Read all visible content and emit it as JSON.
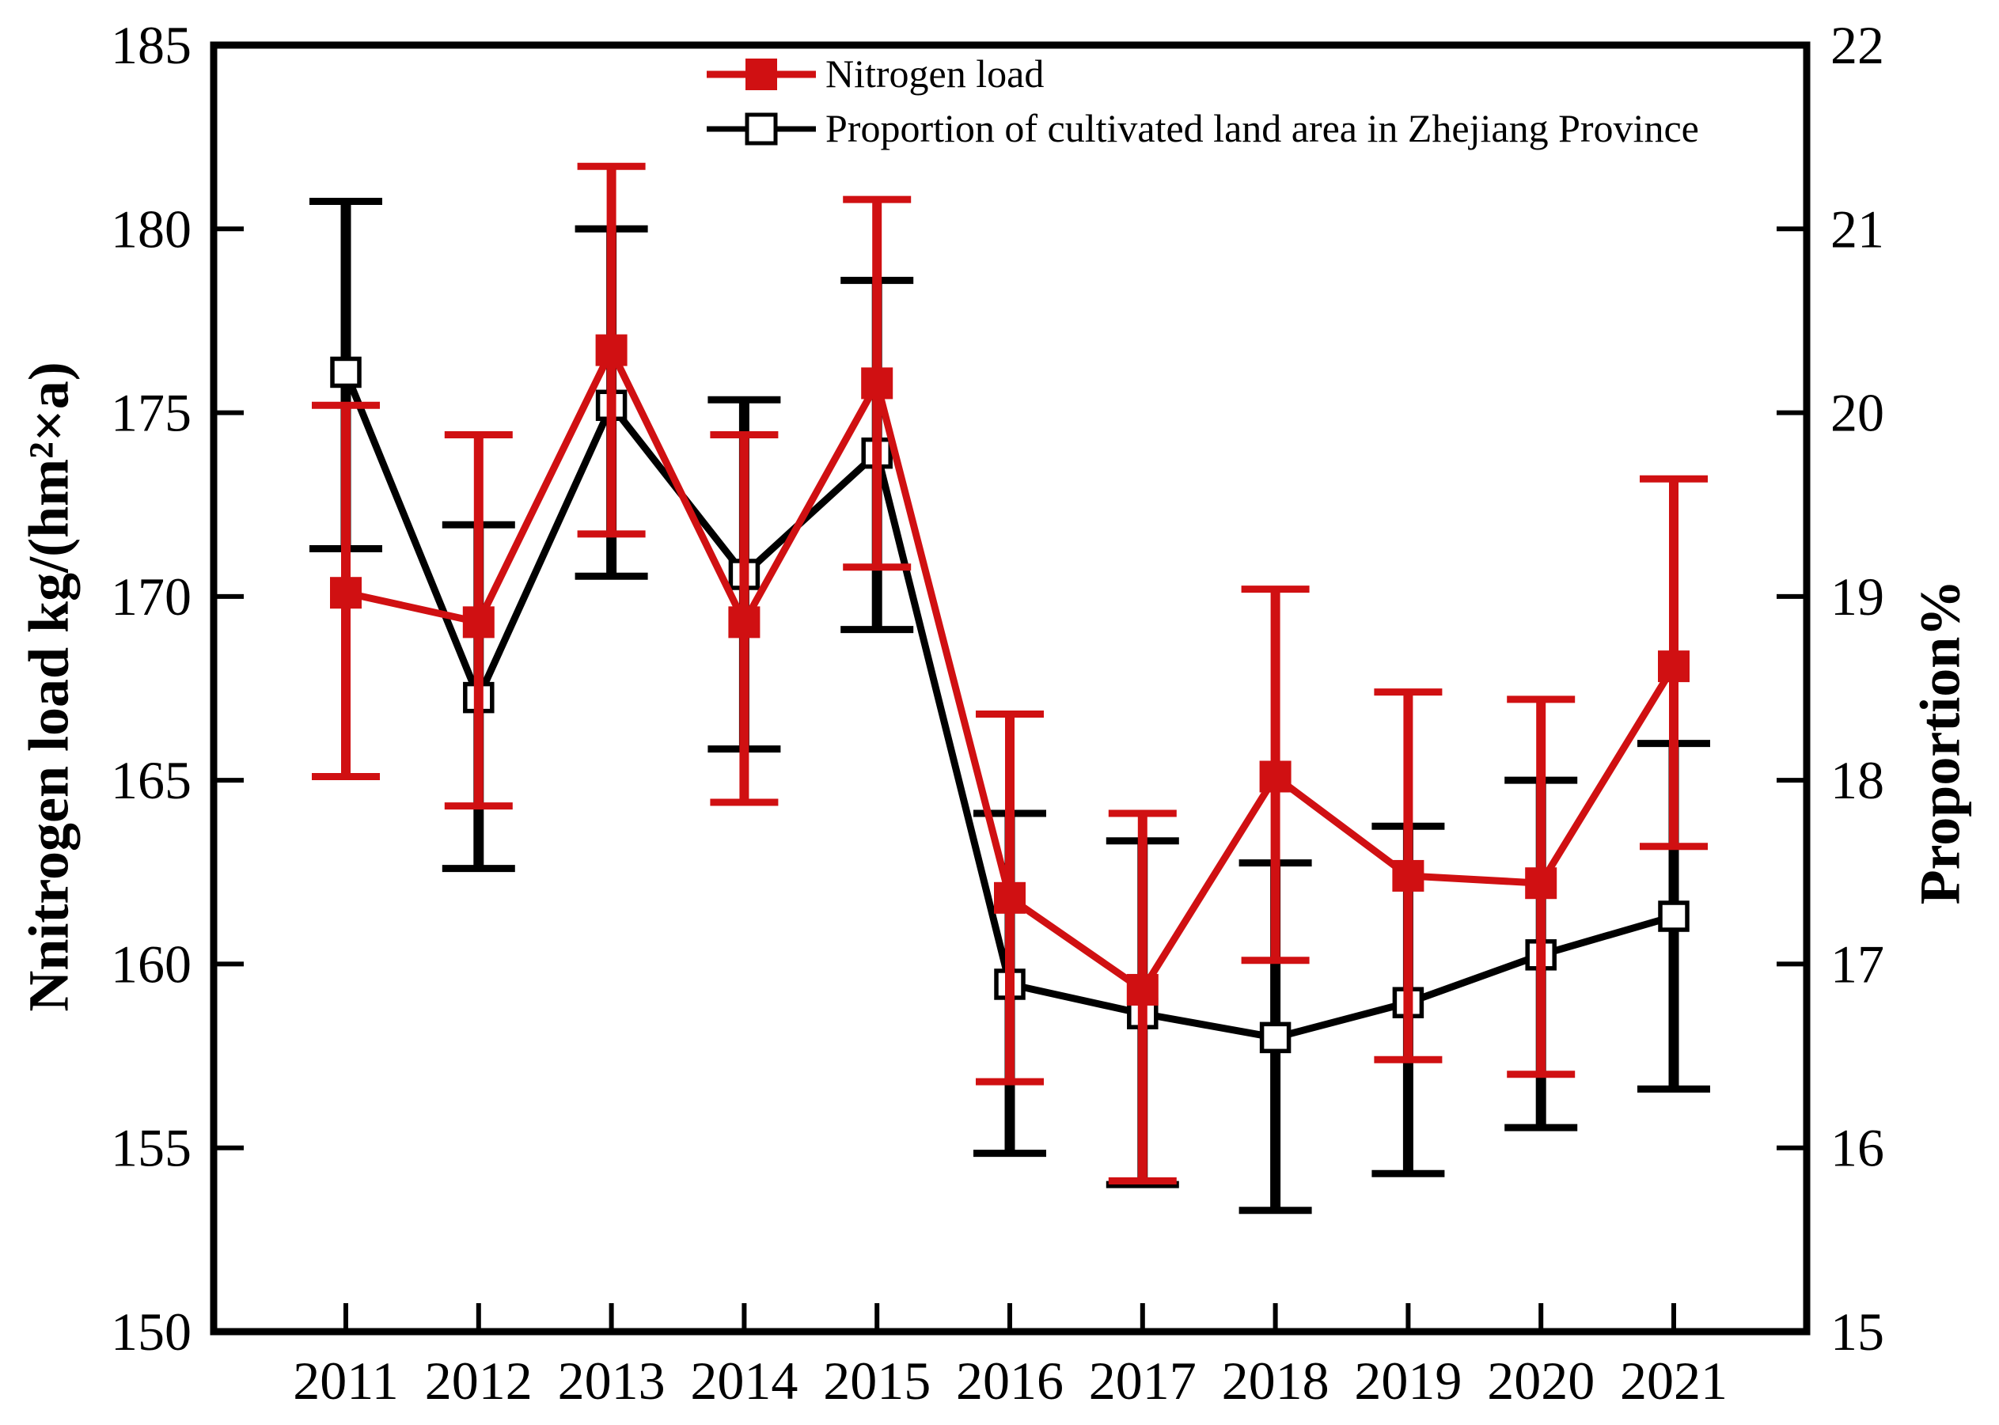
{
  "figure": {
    "background": "#ffffff",
    "frame_color": "#000000"
  },
  "legend": {
    "position": "top-center",
    "items": [
      {
        "label": "Nitrogen load",
        "marker": "filled-square",
        "color": "#d01012"
      },
      {
        "label": "Proportion of cultivated land area in Zhejiang Province",
        "marker": "open-square",
        "color": "#000000"
      }
    ]
  },
  "chart_data": {
    "type": "line",
    "categories": [
      "2011",
      "2012",
      "2013",
      "2014",
      "2015",
      "2016",
      "2017",
      "2018",
      "2019",
      "2020",
      "2021"
    ],
    "left_axis": {
      "label": "Nnitrogen load kg/(hm²×a)",
      "min": 150,
      "max": 185,
      "tick_step": 5,
      "ticks": [
        150,
        155,
        160,
        165,
        170,
        175,
        180,
        185
      ]
    },
    "right_axis": {
      "label": "Proportion%",
      "min": 15,
      "max": 22,
      "tick_step": 1,
      "ticks": [
        15,
        16,
        17,
        18,
        19,
        20,
        21,
        22
      ]
    },
    "grid": false,
    "series": [
      {
        "name": "Proportion of cultivated land area in Zhejiang Province",
        "axis": "right",
        "color": "#000000",
        "marker": "open-square",
        "values": [
          20.22,
          18.45,
          20.04,
          19.12,
          19.78,
          16.89,
          16.73,
          16.6,
          16.79,
          17.05,
          17.26
        ],
        "error_lower_caps": [
          19.26,
          17.52,
          19.11,
          18.17,
          18.82,
          15.97,
          15.8,
          15.66,
          15.86,
          16.11,
          16.32
        ],
        "error_upper_caps": [
          21.15,
          19.39,
          21.0,
          20.07,
          20.72,
          17.82,
          17.67,
          17.55,
          17.75,
          18.0,
          18.2
        ]
      },
      {
        "name": "Nitrogen load",
        "axis": "left",
        "color": "#d01012",
        "marker": "filled-square",
        "values": [
          170.1,
          169.3,
          176.7,
          169.3,
          175.8,
          161.8,
          159.3,
          165.1,
          162.4,
          162.2,
          168.1
        ],
        "error_lower_caps": [
          165.1,
          164.3,
          171.7,
          164.4,
          170.8,
          156.8,
          154.1,
          160.1,
          157.4,
          157.0,
          163.2
        ],
        "error_upper_caps": [
          175.2,
          174.4,
          181.7,
          174.4,
          180.8,
          166.8,
          164.1,
          170.2,
          167.4,
          167.2,
          173.2
        ]
      }
    ]
  }
}
